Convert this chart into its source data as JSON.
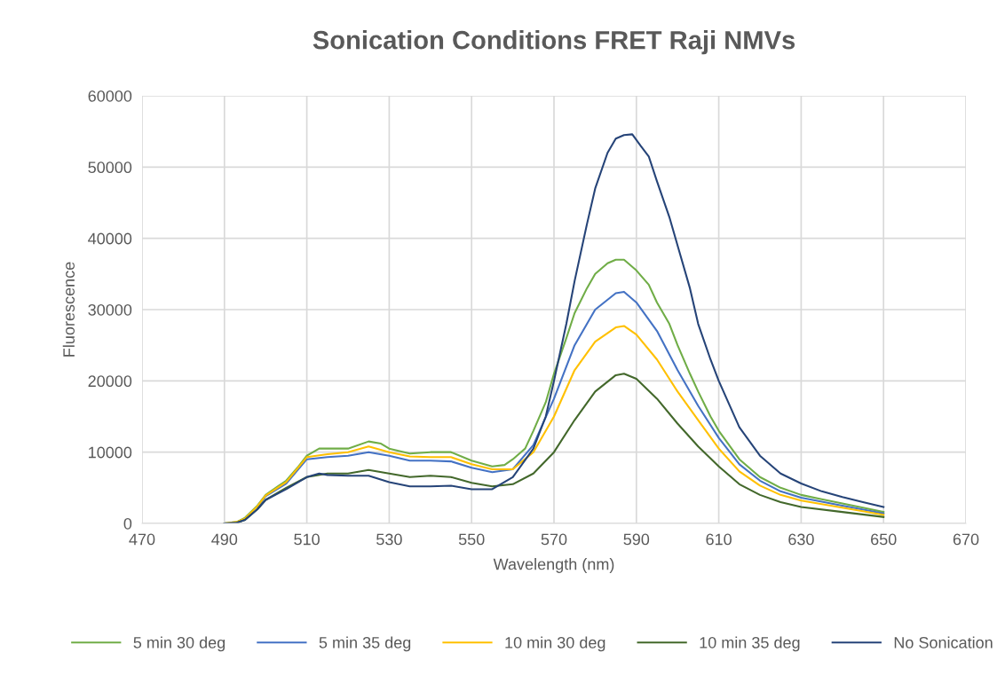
{
  "chart_data": {
    "type": "line",
    "title": "Sonication Conditions FRET Raji NMVs",
    "xlabel": "Wavelength (nm)",
    "ylabel": "Fluorescence",
    "xlim": [
      470,
      670
    ],
    "xticks": [
      470,
      490,
      510,
      530,
      550,
      570,
      590,
      610,
      630,
      650,
      670
    ],
    "ylim": [
      0,
      60000
    ],
    "yticks": [
      0,
      10000,
      20000,
      30000,
      40000,
      50000,
      60000
    ],
    "grid": true,
    "legend": "bottom",
    "marker": "none",
    "line_style": "solid",
    "series": [
      {
        "name": "5 min 30 deg",
        "color": "#70ad47",
        "x": [
          490,
          493,
          495,
          498,
          500,
          503,
          505,
          508,
          510,
          513,
          515,
          520,
          525,
          528,
          530,
          535,
          540,
          545,
          550,
          555,
          558,
          560,
          563,
          565,
          568,
          570,
          573,
          575,
          578,
          580,
          583,
          585,
          587,
          590,
          593,
          595,
          598,
          600,
          603,
          605,
          608,
          610,
          615,
          620,
          625,
          630,
          635,
          640,
          645,
          650
        ],
        "values": [
          0,
          200,
          800,
          2500,
          4000,
          5200,
          6000,
          8000,
          9500,
          10500,
          10500,
          10500,
          11500,
          11200,
          10500,
          9800,
          10000,
          10000,
          8800,
          8000,
          8200,
          9000,
          10500,
          13000,
          17000,
          21000,
          26000,
          29500,
          33000,
          35000,
          36500,
          37000,
          37000,
          35500,
          33500,
          31000,
          28000,
          25000,
          21000,
          18500,
          15000,
          13000,
          9000,
          6500,
          5000,
          4000,
          3400,
          2800,
          2200,
          1600
        ]
      },
      {
        "name": "5 min 35 deg",
        "color": "#4472c4",
        "x": [
          498,
          500,
          505,
          510,
          515,
          520,
          525,
          530,
          535,
          540,
          545,
          550,
          555,
          560,
          565,
          570,
          575,
          580,
          585,
          587,
          590,
          595,
          600,
          605,
          610,
          615,
          620,
          625,
          630,
          640,
          650
        ],
        "values": [
          2300,
          3800,
          5600,
          9000,
          9300,
          9500,
          10000,
          9500,
          8800,
          8800,
          8700,
          7800,
          7200,
          7600,
          11000,
          17500,
          25000,
          30000,
          32300,
          32500,
          31000,
          27000,
          21500,
          16500,
          12000,
          8300,
          6000,
          4500,
          3600,
          2500,
          1400
        ]
      },
      {
        "name": "10 min 30 deg",
        "color": "#ffc000",
        "x": [
          490,
          493,
          495,
          498,
          500,
          505,
          510,
          515,
          520,
          525,
          530,
          535,
          540,
          545,
          550,
          555,
          560,
          565,
          570,
          575,
          580,
          585,
          587,
          590,
          595,
          600,
          605,
          610,
          615,
          620,
          625,
          630,
          640,
          650
        ],
        "values": [
          0,
          200,
          700,
          2400,
          3900,
          5800,
          9300,
          9700,
          10000,
          10800,
          10000,
          9400,
          9300,
          9300,
          8300,
          7600,
          7600,
          10000,
          15000,
          21500,
          25500,
          27500,
          27700,
          26500,
          23000,
          18500,
          14500,
          10500,
          7300,
          5300,
          4000,
          3200,
          2200,
          1200
        ]
      },
      {
        "name": "10 min 35 deg",
        "color": "#43682b",
        "x": [
          490,
          493,
          495,
          498,
          500,
          505,
          510,
          515,
          520,
          525,
          530,
          535,
          540,
          545,
          550,
          555,
          560,
          565,
          570,
          575,
          580,
          585,
          587,
          590,
          595,
          600,
          605,
          610,
          615,
          620,
          625,
          630,
          640,
          650
        ],
        "values": [
          0,
          100,
          500,
          2000,
          3300,
          5000,
          6500,
          7000,
          7000,
          7500,
          7000,
          6500,
          6700,
          6500,
          5700,
          5200,
          5500,
          7000,
          10000,
          14500,
          18500,
          20800,
          21000,
          20300,
          17500,
          14000,
          10800,
          8000,
          5500,
          4000,
          3000,
          2300,
          1600,
          900
        ]
      },
      {
        "name": "No Sonication",
        "color": "#264478",
        "x": [
          490,
          493,
          495,
          498,
          500,
          505,
          510,
          513,
          515,
          520,
          525,
          530,
          535,
          540,
          545,
          550,
          555,
          560,
          565,
          568,
          570,
          573,
          575,
          578,
          580,
          583,
          585,
          587,
          589,
          591,
          593,
          595,
          598,
          600,
          603,
          605,
          608,
          610,
          615,
          620,
          625,
          630,
          635,
          640,
          645,
          650
        ],
        "values": [
          0,
          100,
          500,
          2000,
          3300,
          4800,
          6500,
          7000,
          6800,
          6700,
          6700,
          5800,
          5200,
          5200,
          5300,
          4800,
          4800,
          6500,
          10500,
          15000,
          20000,
          28000,
          34000,
          42000,
          47000,
          52000,
          54000,
          54500,
          54600,
          53000,
          51500,
          48000,
          43000,
          39000,
          33000,
          28000,
          23000,
          20000,
          13500,
          9500,
          7000,
          5600,
          4500,
          3700,
          3000,
          2300
        ]
      }
    ]
  }
}
